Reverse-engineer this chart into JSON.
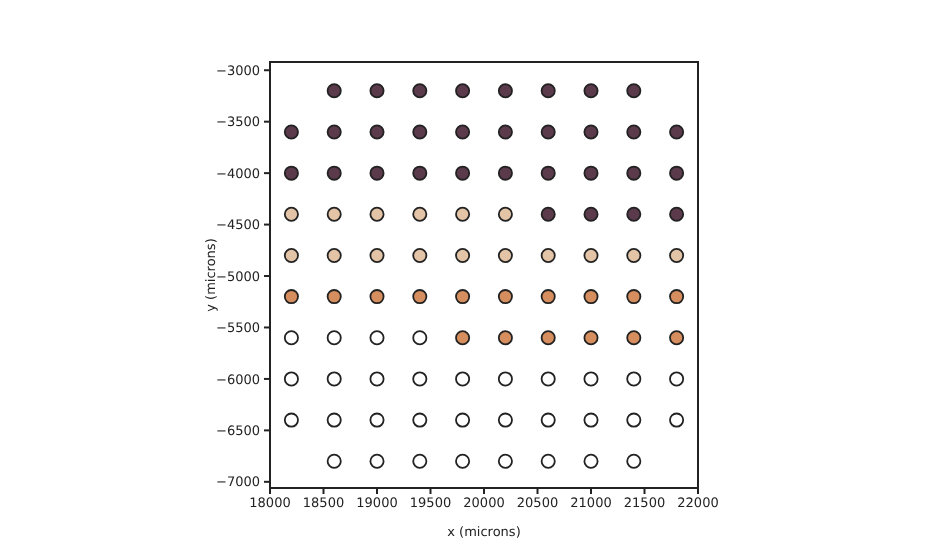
{
  "chart_data": {
    "type": "scatter",
    "xlabel": "x (microns)",
    "ylabel": "y (microns)",
    "marker": "circle",
    "xlim": [
      18000,
      22000
    ],
    "ylim": [
      -7060,
      -2920
    ],
    "xticks": [
      18000,
      18500,
      19000,
      19500,
      20000,
      20500,
      21000,
      21500,
      22000
    ],
    "yticks": [
      -7000,
      -6500,
      -6000,
      -5500,
      -5000,
      -4500,
      -4000,
      -3500,
      -3000
    ],
    "x": [
      18600,
      19000,
      19400,
      19800,
      20200,
      20600,
      21000,
      21400,
      18200,
      18600,
      19000,
      19400,
      19800,
      20200,
      20600,
      21000,
      21400,
      21800,
      18200,
      18600,
      19000,
      19400,
      19800,
      20200,
      20600,
      21000,
      21400,
      21800,
      18200,
      18600,
      19000,
      19400,
      19800,
      20200,
      20600,
      21000,
      21400,
      21800,
      18200,
      18600,
      19000,
      19400,
      19800,
      20200,
      20600,
      21000,
      21400,
      21800,
      18200,
      18600,
      19000,
      19400,
      19800,
      20200,
      20600,
      21000,
      21400,
      21800,
      18200,
      18600,
      19000,
      19400,
      19800,
      20200,
      20600,
      21000,
      21400,
      21800,
      18200,
      18600,
      19000,
      19400,
      19800,
      20200,
      20600,
      21000,
      21400,
      21800,
      18200,
      18600,
      19000,
      19400,
      19800,
      20200,
      20600,
      21000,
      21400,
      21800,
      18600,
      19000,
      19400,
      19800,
      20200,
      20600,
      21000,
      21400
    ],
    "values": [
      -3200,
      -3200,
      -3200,
      -3200,
      -3200,
      -3200,
      -3200,
      -3200,
      -3600,
      -3600,
      -3600,
      -3600,
      -3600,
      -3600,
      -3600,
      -3600,
      -3600,
      -3600,
      -4000,
      -4000,
      -4000,
      -4000,
      -4000,
      -4000,
      -4000,
      -4000,
      -4000,
      -4000,
      -4400,
      -4400,
      -4400,
      -4400,
      -4400,
      -4400,
      -4400,
      -4400,
      -4400,
      -4400,
      -4800,
      -4800,
      -4800,
      -4800,
      -4800,
      -4800,
      -4800,
      -4800,
      -4800,
      -4800,
      -5200,
      -5200,
      -5200,
      -5200,
      -5200,
      -5200,
      -5200,
      -5200,
      -5200,
      -5200,
      -5600,
      -5600,
      -5600,
      -5600,
      -5600,
      -5600,
      -5600,
      -5600,
      -5600,
      -5600,
      -6000,
      -6000,
      -6000,
      -6000,
      -6000,
      -6000,
      -6000,
      -6000,
      -6000,
      -6000,
      -6400,
      -6400,
      -6400,
      -6400,
      -6400,
      -6400,
      -6400,
      -6400,
      -6400,
      -6400,
      -6800,
      -6800,
      -6800,
      -6800,
      -6800,
      -6800,
      -6800,
      -6800
    ],
    "colors": [
      "#5b3a4c",
      "#5b3a4c",
      "#5b3a4c",
      "#5b3a4c",
      "#5b3a4c",
      "#5b3a4c",
      "#5b3a4c",
      "#5b3a4c",
      "#5b3a4c",
      "#5b3a4c",
      "#5b3a4c",
      "#5b3a4c",
      "#5b3a4c",
      "#5b3a4c",
      "#5b3a4c",
      "#5b3a4c",
      "#5b3a4c",
      "#5b3a4c",
      "#5b3a4c",
      "#5b3a4c",
      "#5b3a4c",
      "#5b3a4c",
      "#5b3a4c",
      "#5b3a4c",
      "#5b3a4c",
      "#5b3a4c",
      "#5b3a4c",
      "#5b3a4c",
      "#e3c4a6",
      "#e3c4a6",
      "#e3c4a6",
      "#e3c4a6",
      "#e3c4a6",
      "#e3c4a6",
      "#5b3a4c",
      "#5b3a4c",
      "#5b3a4c",
      "#5b3a4c",
      "#e3c4a6",
      "#e3c4a6",
      "#e3c4a6",
      "#e3c4a6",
      "#e3c4a6",
      "#e3c4a6",
      "#e3c4a6",
      "#e3c4a6",
      "#e3c4a6",
      "#e3c4a6",
      "#d68e5e",
      "#d68e5e",
      "#d68e5e",
      "#d68e5e",
      "#d68e5e",
      "#d68e5e",
      "#d68e5e",
      "#d68e5e",
      "#d68e5e",
      "#d68e5e",
      "#ffffff",
      "#ffffff",
      "#ffffff",
      "#ffffff",
      "#d68e5e",
      "#d68e5e",
      "#d68e5e",
      "#d68e5e",
      "#d68e5e",
      "#d68e5e",
      "#ffffff",
      "#ffffff",
      "#ffffff",
      "#ffffff",
      "#ffffff",
      "#ffffff",
      "#ffffff",
      "#ffffff",
      "#ffffff",
      "#ffffff",
      "#ffffff",
      "#ffffff",
      "#ffffff",
      "#ffffff",
      "#ffffff",
      "#ffffff",
      "#ffffff",
      "#ffffff",
      "#ffffff",
      "#ffffff",
      "#ffffff",
      "#ffffff",
      "#ffffff",
      "#ffffff",
      "#ffffff",
      "#ffffff",
      "#ffffff",
      "#ffffff"
    ]
  }
}
